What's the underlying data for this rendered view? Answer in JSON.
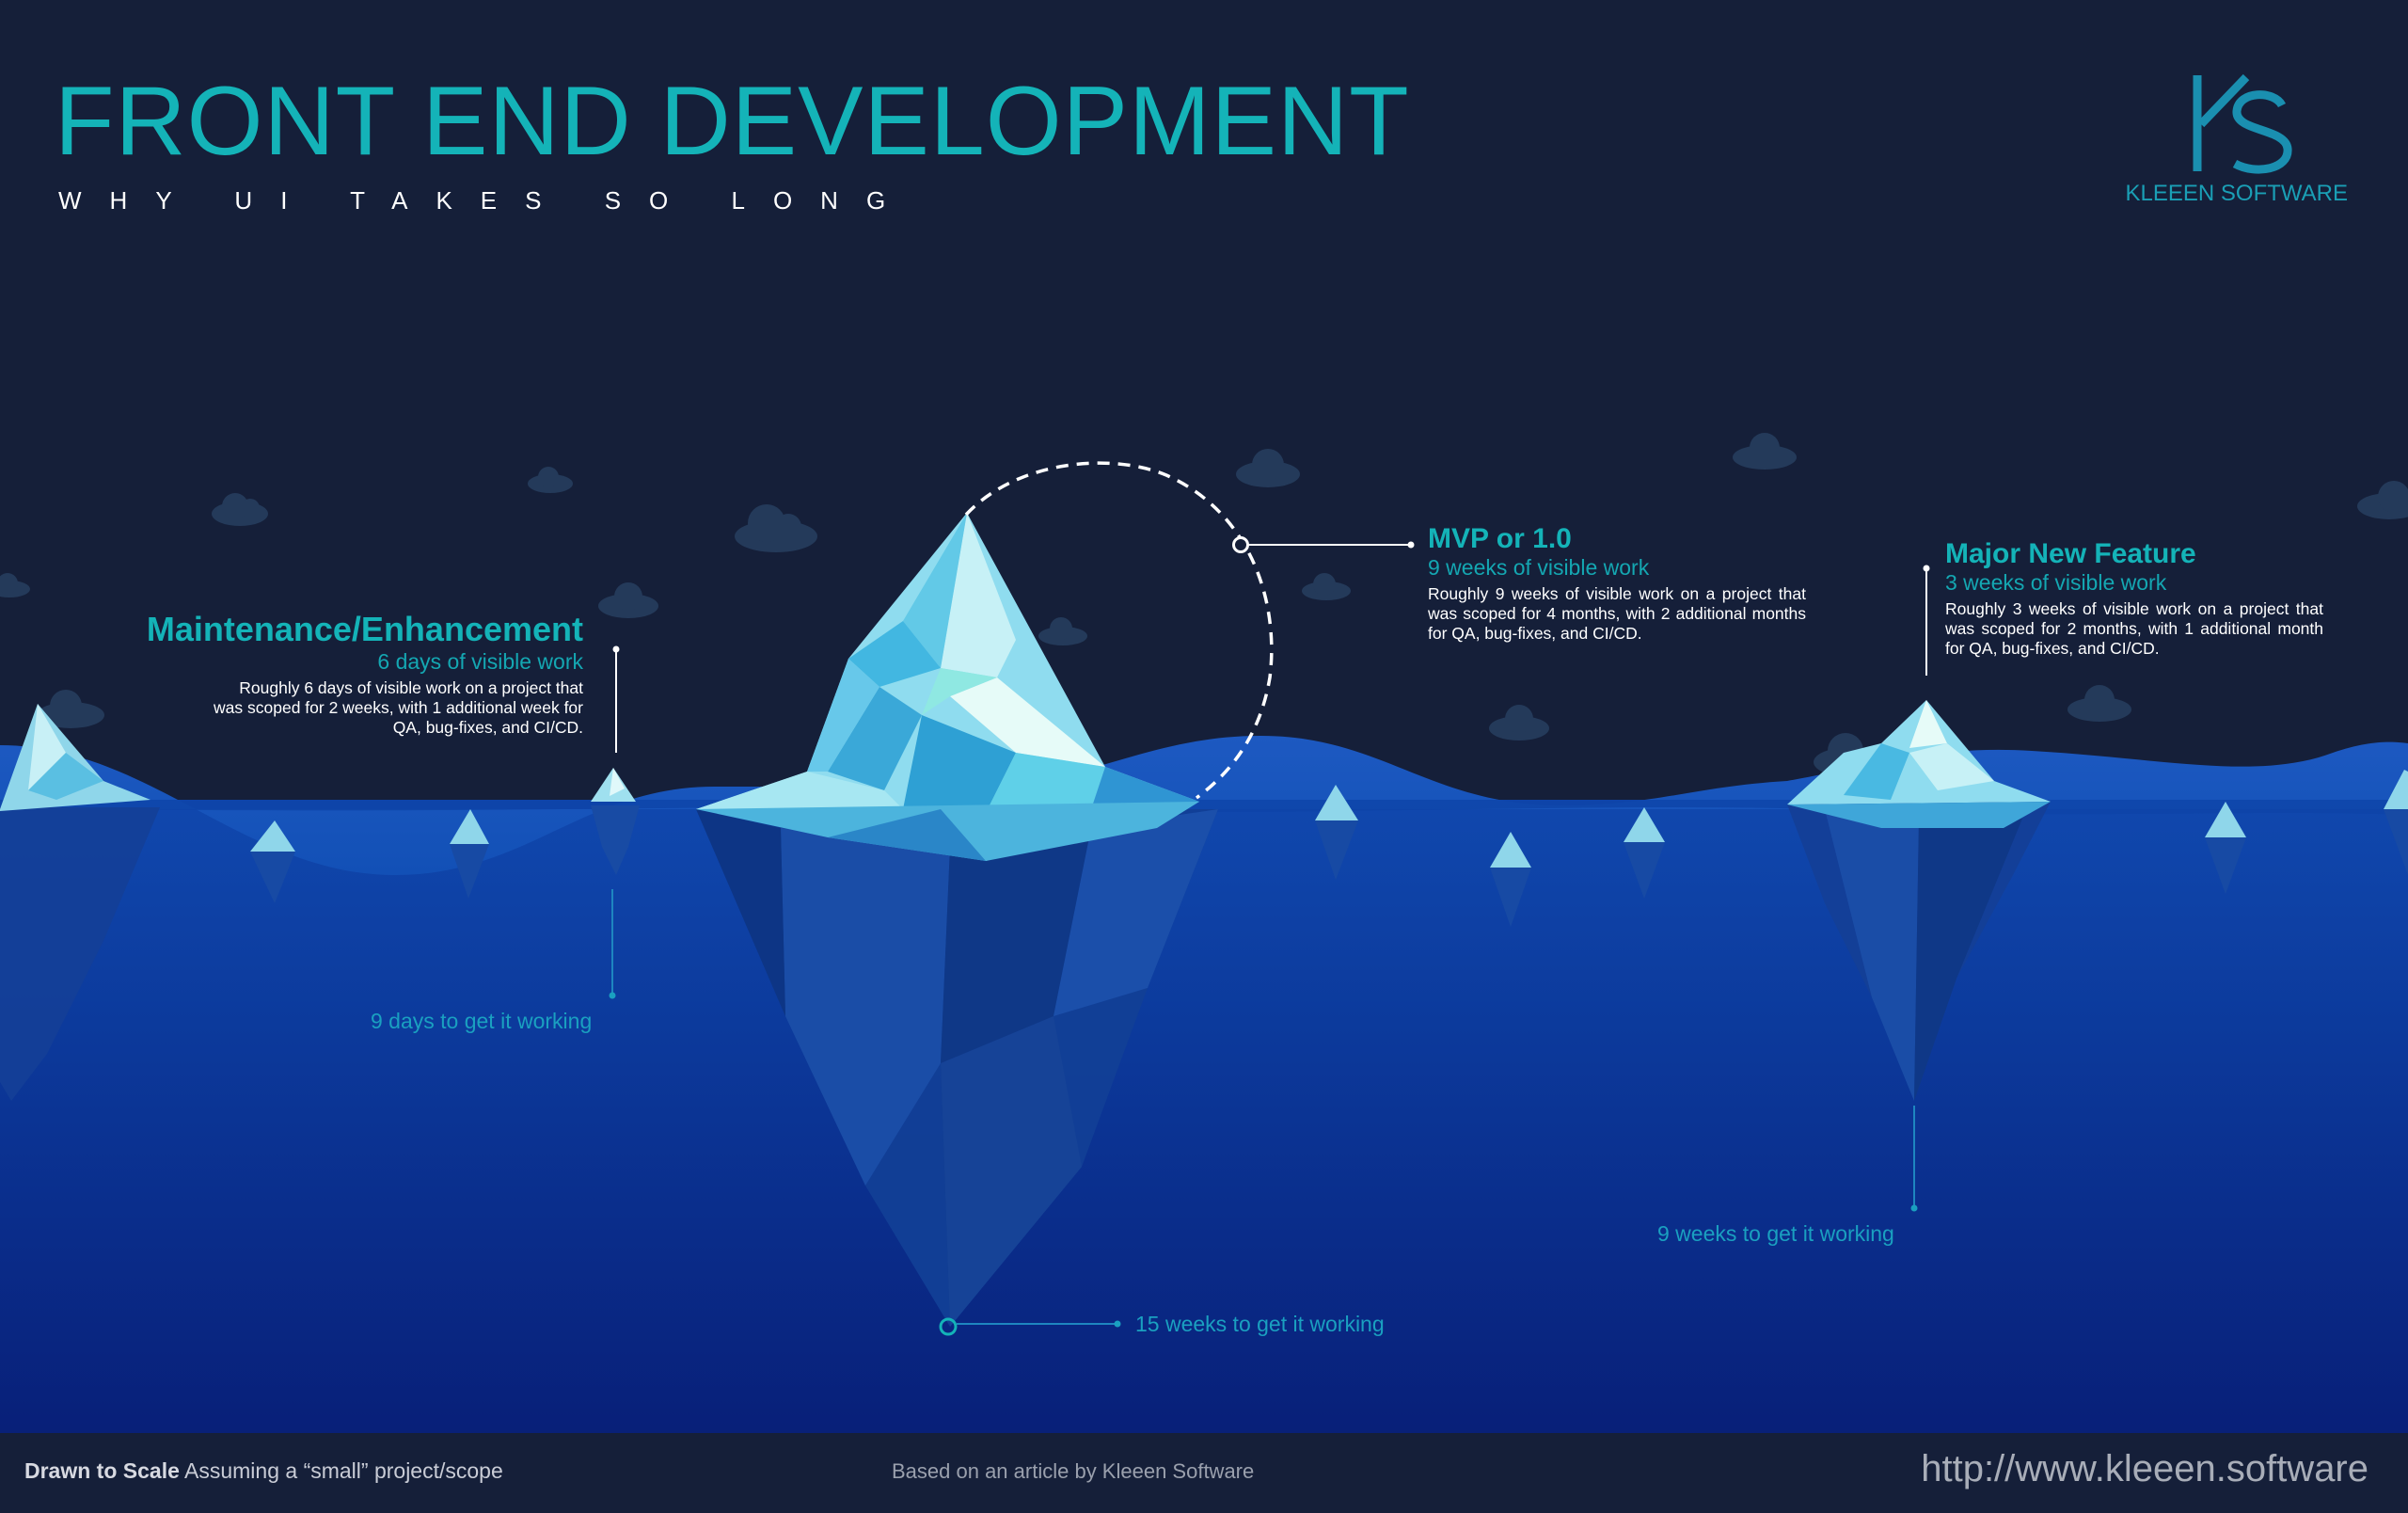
{
  "header": {
    "title": "FRONT END DEVELOPMENT",
    "subtitle": "WHY UI TAKES SO LONG"
  },
  "logo": {
    "icon": "ks-logo-icon",
    "text": "KLEEEN SOFTWARE"
  },
  "sections": {
    "maintenance": {
      "title": "Maintenance/Enhancement",
      "visible": "6 days of visible work",
      "description": "Roughly 6 days of visible work on a project that was scoped for 2 weeks, with 1 additional week for QA, bug-fixes, and CI/CD.",
      "below": "9 days to get it working"
    },
    "mvp": {
      "title": "MVP or 1.0",
      "visible": "9 weeks of visible work",
      "description": "Roughly 9 weeks of visible work on a project that was scoped for 4 months, with 2 additional months for QA, bug-fixes, and CI/CD.",
      "below": "15 weeks to get it working"
    },
    "feature": {
      "title": "Major New Feature",
      "visible": "3 weeks of visible work",
      "description": "Roughly 3 weeks of visible work on a project that was scoped for 2 months, with 1 additional month for QA, bug-fixes, and CI/CD.",
      "below": "9 weeks to get it working"
    }
  },
  "footer": {
    "scale_bold": "Drawn to Scale",
    "scale_rest": "Assuming a “small” project/scope",
    "credit": "Based on an article by Kleeen Software",
    "url": "http://www.kleeen.software"
  },
  "colors": {
    "sky": "#151f39",
    "accent": "#14b3b8",
    "water_top": "#0f47a8",
    "water_bottom": "#061a6e"
  }
}
